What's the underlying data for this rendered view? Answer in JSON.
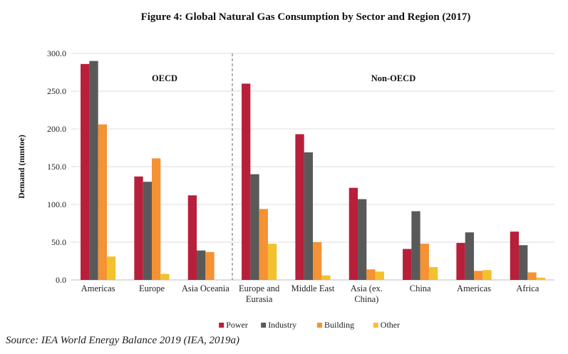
{
  "chart_data": {
    "type": "bar",
    "title": "Figure 4: Global Natural Gas Consumption by Sector and Region (2017)",
    "ylabel": "Demand (mmtoe)",
    "xlabel": "",
    "ylim": [
      0,
      300
    ],
    "yticks": [
      "0.0",
      "50.0",
      "100.0",
      "150.0",
      "200.0",
      "250.0",
      "300.0"
    ],
    "grid": true,
    "legend_position": "bottom",
    "groups": [
      {
        "label": "OECD",
        "categories": 3
      },
      {
        "label": "Non-OECD",
        "categories": 6
      }
    ],
    "categories": [
      [
        "Americas"
      ],
      [
        "Europe"
      ],
      [
        "Asia Oceania"
      ],
      [
        "Europe and",
        "Eurasia"
      ],
      [
        "Middle East"
      ],
      [
        "Asia (ex.",
        "China)"
      ],
      [
        "China"
      ],
      [
        "Americas"
      ],
      [
        "Africa"
      ]
    ],
    "series": [
      {
        "name": "Power",
        "color": "#b81f3a",
        "values": [
          286,
          137,
          112,
          260,
          193,
          122,
          41,
          49,
          64
        ]
      },
      {
        "name": "Industry",
        "color": "#595959",
        "values": [
          290,
          130,
          39,
          140,
          169,
          107,
          91,
          63,
          46
        ]
      },
      {
        "name": "Building",
        "color": "#f59234",
        "values": [
          206,
          161,
          37,
          94,
          50,
          14,
          48,
          12,
          10
        ]
      },
      {
        "name": "Other",
        "color": "#f2c12e",
        "values": [
          31,
          8,
          0,
          48,
          6,
          11,
          17,
          13,
          3
        ]
      }
    ]
  },
  "source": "Source: IEA World Energy Balance 2019 (IEA, 2019a)"
}
